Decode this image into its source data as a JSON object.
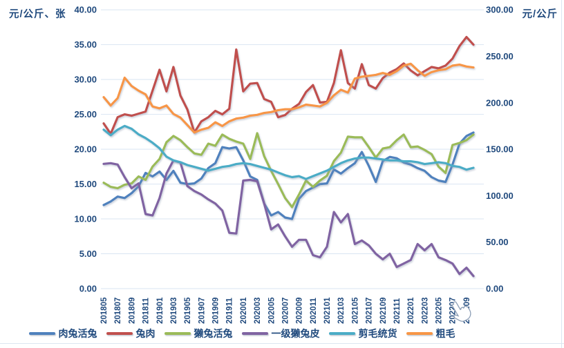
{
  "chart": {
    "left_axis_title": "元/公斤、张",
    "right_axis_title": "元/公斤",
    "background": "#ffffff",
    "gridline_color": "#d9e5f2",
    "text_color": "#1F497D"
  },
  "cursor": {
    "type": "hand-pointer",
    "near_label": "202209"
  },
  "chart_data": {
    "type": "line",
    "title": "",
    "grid": "horizontal",
    "legend_position": "bottom",
    "categories": [
      "201805",
      "201806",
      "201807",
      "201808",
      "201809",
      "201810",
      "201811",
      "201812",
      "201901",
      "201902",
      "201903",
      "201904",
      "201905",
      "201906",
      "201907",
      "201908",
      "201909",
      "201910",
      "201911",
      "201912",
      "202001",
      "202002",
      "202003",
      "202004",
      "202005",
      "202006",
      "202007",
      "202008",
      "202009",
      "202010",
      "202011",
      "202012",
      "202101",
      "202102",
      "202103",
      "202104",
      "202105",
      "202106",
      "202107",
      "202108",
      "202109",
      "202110",
      "202111",
      "202112",
      "202201",
      "202202",
      "202203",
      "202204",
      "202205",
      "202206",
      "202207",
      "202208",
      "202209",
      "202210"
    ],
    "x_tick_labels": [
      "201805",
      "201807",
      "201809",
      "201811",
      "201901",
      "201903",
      "201905",
      "201907",
      "201909",
      "201911",
      "202001",
      "202003",
      "202005",
      "202007",
      "202009",
      "202011",
      "202101",
      "202103",
      "202105",
      "202107",
      "202109",
      "202111",
      "202201",
      "202203",
      "202205",
      "202207",
      "202209"
    ],
    "left_axis": {
      "title": "元/公斤、张",
      "min": 0,
      "max": 40,
      "tick_step": 5,
      "ticks": [
        "40.00",
        "35.00",
        "30.00",
        "25.00",
        "20.00",
        "15.00",
        "10.00",
        "5.00",
        "0.00"
      ]
    },
    "right_axis": {
      "title": "元/公斤",
      "min": 0,
      "max": 300,
      "tick_step": 50,
      "ticks": [
        "300.00",
        "250.00",
        "200.00",
        "150.00",
        "100.00",
        "50.00",
        "0.00"
      ]
    },
    "series": [
      {
        "name": "肉兔活兔",
        "key": "meat-rabbit-live",
        "axis": "left",
        "color": "#4F81BD",
        "values": [
          12.0,
          12.5,
          13.2,
          13.0,
          13.7,
          14.7,
          16.6,
          16.1,
          16.8,
          15.6,
          16.9,
          15.2,
          15.0,
          15.1,
          15.8,
          17.3,
          18.0,
          20.3,
          20.1,
          20.3,
          18.4,
          16.1,
          15.6,
          12.2,
          10.5,
          11.0,
          10.2,
          10.0,
          12.9,
          14.0,
          14.5,
          15.0,
          15.1,
          17.1,
          16.5,
          17.3,
          18.0,
          19.6,
          17.6,
          15.3,
          18.3,
          18.9,
          18.7,
          18.1,
          17.8,
          17.3,
          16.9,
          16.0,
          15.5,
          15.3,
          17.8,
          20.8,
          21.9,
          22.4
        ]
      },
      {
        "name": "兔肉",
        "key": "rabbit-meat",
        "axis": "left",
        "color": "#C0504D",
        "values": [
          23.7,
          22.2,
          24.6,
          25.0,
          24.8,
          25.1,
          25.4,
          28.4,
          31.4,
          28.3,
          31.8,
          27.7,
          25.7,
          22.4,
          24.0,
          24.6,
          25.5,
          25.0,
          25.8,
          34.3,
          28.3,
          29.4,
          29.5,
          27.2,
          26.8,
          24.6,
          24.9,
          25.8,
          26.5,
          28.2,
          29.2,
          26.7,
          26.8,
          29.5,
          34.2,
          29.5,
          28.7,
          32.2,
          29.2,
          28.7,
          30.2,
          31.0,
          31.5,
          32.3,
          31.3,
          30.6,
          31.2,
          31.8,
          31.6,
          32.0,
          33.0,
          34.8,
          36.1,
          35.0
        ]
      },
      {
        "name": "獭兔活兔",
        "key": "rex-rabbit-live",
        "axis": "left",
        "color": "#9BBB59",
        "values": [
          15.2,
          14.6,
          14.4,
          14.9,
          15.1,
          16.1,
          15.6,
          17.5,
          18.6,
          21.0,
          21.9,
          21.3,
          20.3,
          19.4,
          19.2,
          20.8,
          20.5,
          22.1,
          21.5,
          21.1,
          20.8,
          18.6,
          22.3,
          19.0,
          16.9,
          15.0,
          13.0,
          11.7,
          13.5,
          15.5,
          14.6,
          15.5,
          16.2,
          18.3,
          19.5,
          21.8,
          21.7,
          21.7,
          20.3,
          18.8,
          20.1,
          20.3,
          21.3,
          22.1,
          20.3,
          20.4,
          19.9,
          19.3,
          17.5,
          16.6,
          20.6,
          20.9,
          21.3,
          22.1
        ]
      },
      {
        "name": "一级獭兔皮",
        "key": "grade1-rex-pelt",
        "axis": "left",
        "color": "#8064A2",
        "values": [
          17.9,
          18.0,
          17.8,
          16.0,
          14.4,
          15.1,
          10.7,
          10.5,
          13.0,
          16.5,
          18.4,
          18.1,
          14.7,
          14.0,
          13.5,
          12.8,
          12.2,
          11.2,
          8.0,
          7.9,
          15.5,
          15.6,
          15.4,
          12.2,
          8.5,
          9.2,
          7.5,
          6.0,
          7.0,
          7.0,
          4.8,
          4.5,
          6.0,
          11.0,
          9.5,
          10.7,
          6.4,
          6.9,
          6.2,
          5.0,
          4.2,
          5.0,
          3.1,
          3.6,
          4.1,
          6.4,
          5.5,
          6.4,
          4.5,
          4.1,
          3.6,
          2.1,
          3.0,
          1.8
        ]
      },
      {
        "name": "剪毛统货",
        "key": "sheared-wool",
        "axis": "right",
        "color": "#4BACC6",
        "values": [
          171,
          165,
          171,
          175,
          172,
          166,
          162,
          157,
          151,
          142,
          138,
          136,
          133,
          131,
          129,
          127,
          129,
          131,
          132,
          134,
          135,
          134,
          132,
          130,
          128,
          125,
          122,
          120,
          121,
          118,
          121,
          124,
          127,
          131,
          135,
          138,
          140,
          141,
          141,
          140,
          139,
          138,
          138,
          137,
          137,
          136,
          134,
          135,
          136,
          135,
          132,
          131,
          128,
          130
        ]
      },
      {
        "name": "粗毛",
        "key": "coarse-wool",
        "axis": "right",
        "color": "#F79646",
        "values": [
          206,
          197,
          205,
          227,
          218,
          213,
          209,
          196,
          194,
          197,
          188,
          184,
          176,
          168,
          171,
          173,
          179,
          175,
          180,
          183,
          184,
          186,
          187,
          189,
          190,
          192,
          193,
          193,
          195,
          198,
          197,
          196,
          200,
          208,
          214,
          211,
          226,
          228,
          229,
          230,
          232,
          230,
          234,
          240,
          242,
          235,
          229,
          233,
          235,
          236,
          240,
          241,
          239,
          238
        ]
      }
    ]
  }
}
